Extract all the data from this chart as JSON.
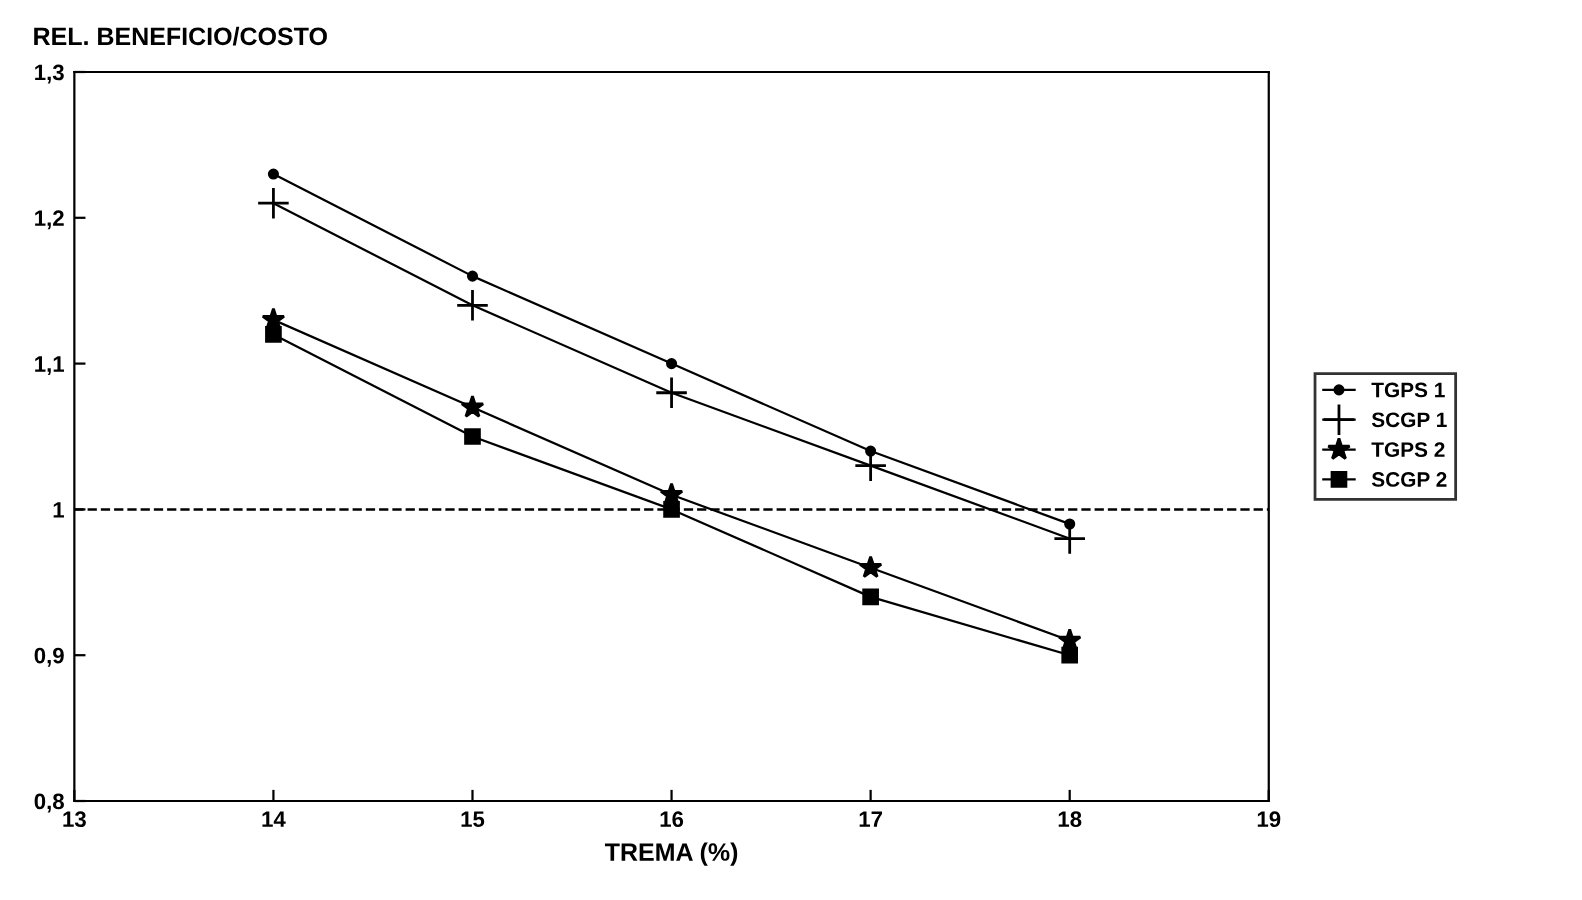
{
  "chart_data": {
    "type": "line",
    "ylabel": "REL. BENEFICIO/COSTO",
    "xlabel": "TREMA (%)",
    "x": [
      14,
      15,
      16,
      17,
      18
    ],
    "series": [
      {
        "name": "TGPS 1",
        "color": "#000000",
        "marker": "circle",
        "values": [
          1.23,
          1.16,
          1.1,
          1.04,
          0.99
        ]
      },
      {
        "name": "SCGP 1",
        "color": "#000000",
        "marker": "cross",
        "values": [
          1.21,
          1.14,
          1.08,
          1.03,
          0.98
        ]
      },
      {
        "name": "TGPS 2",
        "color": "#000000",
        "marker": "star",
        "values": [
          1.13,
          1.07,
          1.01,
          0.96,
          0.91
        ]
      },
      {
        "name": "SCGP 2",
        "color": "#000000",
        "marker": "square",
        "values": [
          1.12,
          1.05,
          1.0,
          0.94,
          0.9
        ]
      }
    ],
    "xlim": [
      13,
      19
    ],
    "xticks": [
      13,
      14,
      15,
      16,
      17,
      18,
      19
    ],
    "ylim": [
      0.8,
      1.3
    ],
    "yticks": [
      {
        "value": 0.8,
        "label": "0,8"
      },
      {
        "value": 0.9,
        "label": "0,9"
      },
      {
        "value": 1,
        "label": "1"
      },
      {
        "value": 1.1,
        "label": "1,1"
      },
      {
        "value": 1.2,
        "label": "1,2"
      },
      {
        "value": 1.3,
        "label": "1,3"
      }
    ],
    "ref_lines": [
      {
        "axis": "y",
        "value": 1,
        "label": null,
        "color": "#000000",
        "line_style": "dashed"
      }
    ],
    "legend": "right",
    "grid": false,
    "line_style": "solid"
  }
}
